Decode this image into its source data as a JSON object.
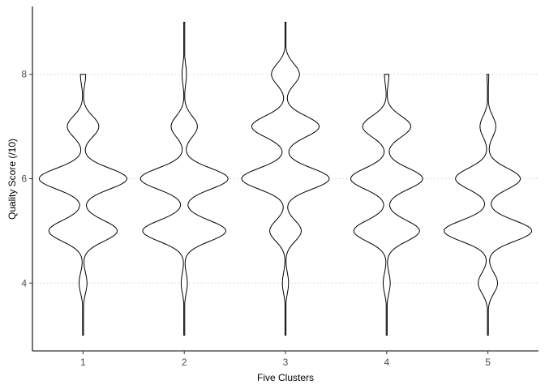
{
  "chart_data": {
    "type": "violin",
    "title": "",
    "xlabel": "Five Clusters",
    "ylabel": "Quality Score (/10)",
    "categories": [
      "1",
      "2",
      "3",
      "4",
      "5"
    ],
    "yticks": [
      4,
      6,
      8
    ],
    "ylim": [
      2.7,
      9.3
    ],
    "grid": "horizontal-dotted",
    "violins": [
      {
        "category": "1",
        "min": 3,
        "max": 8,
        "modes": [
          {
            "value": 4,
            "weight": 0.09
          },
          {
            "value": 5,
            "weight": 0.78
          },
          {
            "value": 6,
            "weight": 1.0
          },
          {
            "value": 7,
            "weight": 0.36
          },
          {
            "value": 8,
            "weight": 0.06
          }
        ]
      },
      {
        "category": "2",
        "min": 3,
        "max": 9,
        "modes": [
          {
            "value": 4,
            "weight": 0.07
          },
          {
            "value": 5,
            "weight": 0.95
          },
          {
            "value": 6,
            "weight": 1.0
          },
          {
            "value": 7,
            "weight": 0.3
          },
          {
            "value": 8,
            "weight": 0.05
          }
        ]
      },
      {
        "category": "3",
        "min": 3,
        "max": 9,
        "modes": [
          {
            "value": 4,
            "weight": 0.07
          },
          {
            "value": 5,
            "weight": 0.36
          },
          {
            "value": 6,
            "weight": 1.0
          },
          {
            "value": 7,
            "weight": 0.77
          },
          {
            "value": 8,
            "weight": 0.32
          }
        ]
      },
      {
        "category": "4",
        "min": 3,
        "max": 8,
        "modes": [
          {
            "value": 4,
            "weight": 0.08
          },
          {
            "value": 5,
            "weight": 0.75
          },
          {
            "value": 6,
            "weight": 0.82
          },
          {
            "value": 7,
            "weight": 0.55
          },
          {
            "value": 8,
            "weight": 0.05
          }
        ]
      },
      {
        "category": "5",
        "min": 3,
        "max": 8,
        "modes": [
          {
            "value": 4,
            "weight": 0.22
          },
          {
            "value": 5,
            "weight": 1.0
          },
          {
            "value": 6,
            "weight": 0.74
          },
          {
            "value": 7,
            "weight": 0.18
          },
          {
            "value": 8,
            "weight": 0.02
          }
        ]
      }
    ]
  }
}
